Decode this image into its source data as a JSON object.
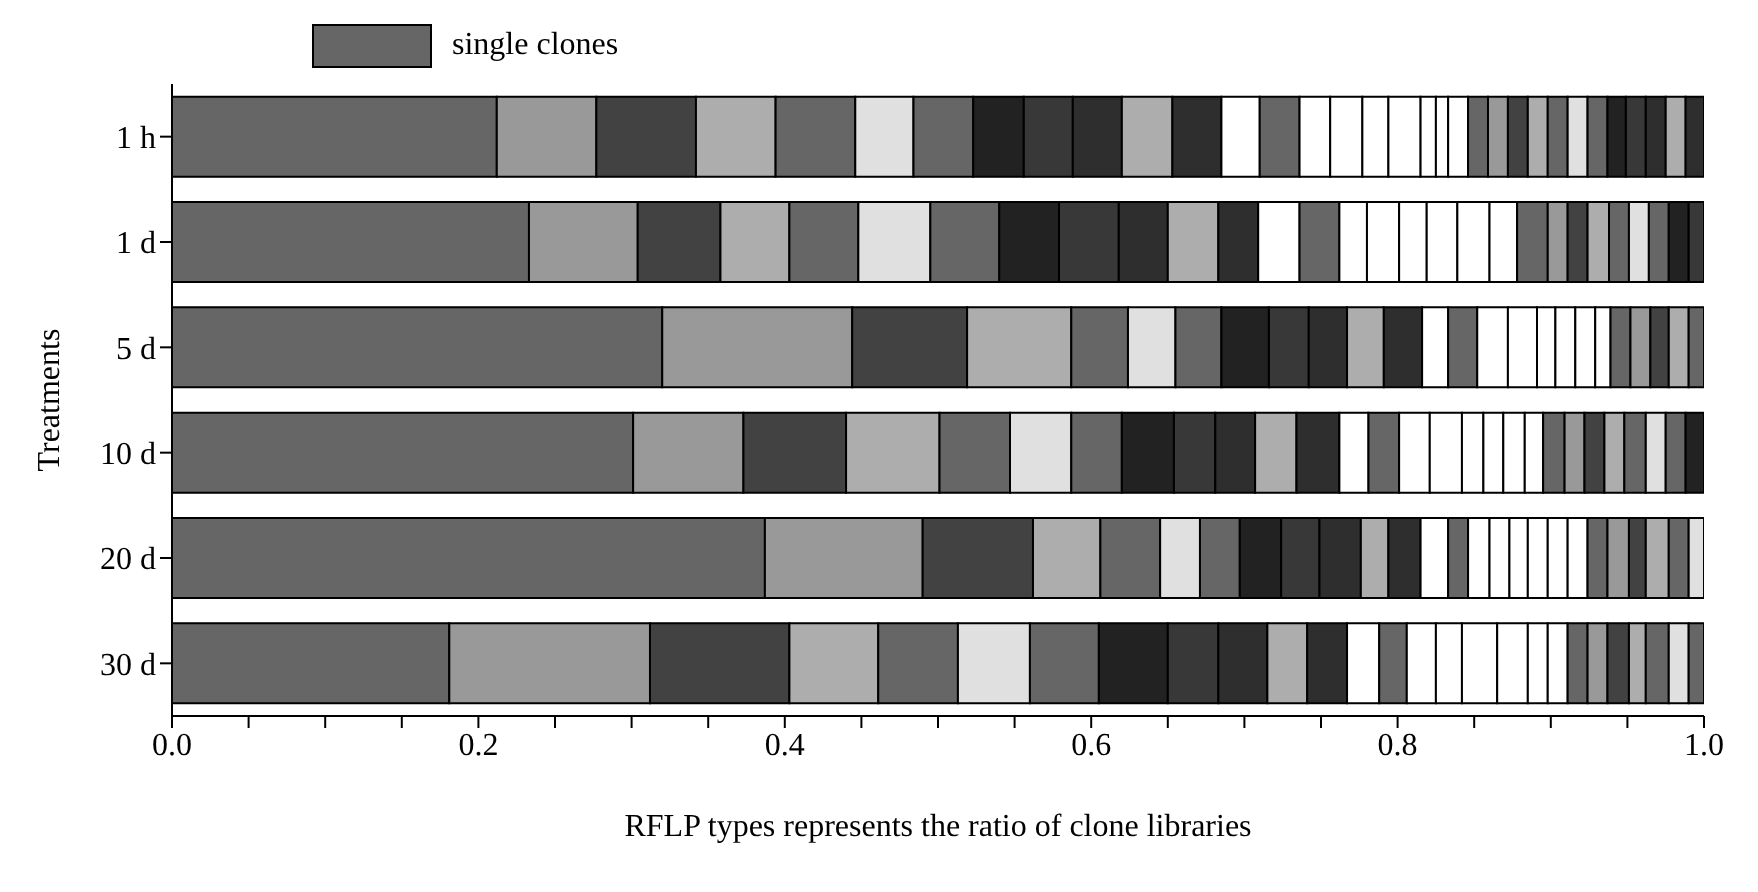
{
  "chart_data": {
    "type": "bar",
    "orientation": "horizontal",
    "stacked": true,
    "xlabel": "RFLP types represents the ratio of clone libraries",
    "ylabel": "Treatments",
    "categories": [
      "1 h",
      "1 d",
      "5 d",
      "10 d",
      "20 d",
      "30 d"
    ],
    "xlim": [
      0,
      1
    ],
    "xticks": [
      {
        "value": 0,
        "label": "0.0"
      },
      {
        "value": 0.05,
        "label": null
      },
      {
        "value": 0.1,
        "label": null
      },
      {
        "value": 0.15,
        "label": null
      },
      {
        "value": 0.2,
        "label": "0.2"
      },
      {
        "value": 0.25,
        "label": null
      },
      {
        "value": 0.3,
        "label": null
      },
      {
        "value": 0.35,
        "label": null
      },
      {
        "value": 0.4,
        "label": "0.4"
      },
      {
        "value": 0.45,
        "label": null
      },
      {
        "value": 0.5,
        "label": null
      },
      {
        "value": 0.55,
        "label": null
      },
      {
        "value": 0.6,
        "label": "0.6"
      },
      {
        "value": 0.65,
        "label": null
      },
      {
        "value": 0.7,
        "label": null
      },
      {
        "value": 0.75,
        "label": null
      },
      {
        "value": 0.8,
        "label": "0.8"
      },
      {
        "value": 0.85,
        "label": null
      },
      {
        "value": 0.9,
        "label": null
      },
      {
        "value": 0.95,
        "label": null
      },
      {
        "value": 1,
        "label": "1.0"
      }
    ],
    "legend": "top left",
    "series": [
      {
        "name": "single clones",
        "color": "#666666",
        "values": [
          0.212,
          0.233,
          0.32,
          0.301,
          0.387,
          0.181
        ]
      },
      {
        "color": "#999999",
        "values": [
          0.065,
          0.071,
          0.124,
          0.072,
          0.103,
          0.131
        ]
      },
      {
        "color": "#424242",
        "values": [
          0.065,
          0.054,
          0.075,
          0.067,
          0.072,
          0.091
        ]
      },
      {
        "color": "#adadad",
        "values": [
          0.052,
          0.045,
          0.068,
          0.061,
          0.044,
          0.058
        ]
      },
      {
        "color": "#666666",
        "values": [
          0.052,
          0.045,
          0.037,
          0.046,
          0.039,
          0.052
        ]
      },
      {
        "color": "#e0e0e0",
        "values": [
          0.038,
          0.047,
          0.031,
          0.04,
          0.026,
          0.047
        ]
      },
      {
        "color": "#666666",
        "values": [
          0.039,
          0.045,
          0.03,
          0.033,
          0.026,
          0.045
        ]
      },
      {
        "color": "#222222",
        "values": [
          0.033,
          0.039,
          0.031,
          0.034,
          0.027,
          0.045
        ]
      },
      {
        "color": "#383838",
        "values": [
          0.032,
          0.039,
          0.026,
          0.027,
          0.025,
          0.033
        ]
      },
      {
        "color": "#2e2e2e",
        "values": [
          0.032,
          0.032,
          0.025,
          0.026,
          0.027,
          0.032
        ]
      },
      {
        "color": "#adadad",
        "values": [
          0.033,
          0.033,
          0.024,
          0.027,
          0.018,
          0.026
        ]
      },
      {
        "color": "#2e2e2e",
        "values": [
          0.032,
          0.026,
          0.025,
          0.028,
          0.021,
          0.026
        ]
      },
      {
        "color": "#ffffff",
        "values": [
          0.025,
          0.027,
          0.017,
          0.019,
          0.018,
          0.021
        ]
      },
      {
        "color": "#666666",
        "values": [
          0.026,
          0.026,
          0.019,
          0.02,
          0.013,
          0.018
        ]
      },
      {
        "color": "#ffffff",
        "values": [
          0.02,
          0.018,
          0.02,
          0.02,
          0.014,
          0.019
        ]
      },
      {
        "color": "#ffffff",
        "values": [
          0.021,
          0.021,
          0.019,
          0.021,
          0.013,
          0.017
        ]
      },
      {
        "color": "#ffffff",
        "values": [
          0.017,
          0.018,
          0.012,
          0.014,
          0.012,
          0.023
        ]
      },
      {
        "color": "#ffffff",
        "values": [
          0.021,
          0.02,
          0.013,
          0.013,
          0.013,
          0.02
        ]
      },
      {
        "color": "#ffffff",
        "values": [
          0.01,
          0.021,
          0.013,
          0.014,
          0.013,
          0.013
        ]
      },
      {
        "color": "#ffffff",
        "values": [
          0.008,
          0.018,
          0.01,
          0.012,
          0.013,
          0.013
        ]
      },
      {
        "colors": [
          "#ffffff",
          "#666666",
          "#666666",
          "#666666",
          "#666666",
          "#666666"
        ],
        "values": [
          0.013,
          0.02,
          0.013,
          0.014,
          0.013,
          0.013
        ]
      },
      {
        "colors": [
          "#666666",
          "#999999",
          "#999999",
          "#999999",
          "#999999",
          "#999999"
        ],
        "values": [
          0.013,
          0.013,
          0.013,
          0.013,
          0.014,
          0.013
        ]
      },
      {
        "colors": [
          "#999999",
          "#424242",
          "#424242",
          "#424242",
          "#424242",
          "#424242"
        ],
        "values": [
          0.013,
          0.013,
          0.012,
          0.013,
          0.011,
          0.014
        ]
      },
      {
        "colors": [
          "#424242",
          "#adadad",
          "#adadad",
          "#adadad",
          "#adadad",
          "#adadad"
        ],
        "values": [
          0.013,
          0.014,
          0.013,
          0.013,
          0.015,
          0.011
        ]
      },
      {
        "colors": [
          "#adadad",
          "#666666",
          "#666666",
          "#666666",
          "#666666",
          "#666666"
        ],
        "values": [
          0.013,
          0.013,
          0.01,
          0.014,
          0.013,
          0.015
        ]
      },
      {
        "colors": [
          "#666666",
          "#e0e0e0",
          null,
          "#e0e0e0",
          "#e0e0e0",
          "#e0e0e0"
        ],
        "values": [
          0.013,
          0.013,
          null,
          0.013,
          0.01,
          0.013
        ]
      },
      {
        "colors": [
          "#e0e0e0",
          "#666666",
          null,
          "#666666",
          null,
          "#666666"
        ],
        "values": [
          0.013,
          0.013,
          null,
          0.013,
          null,
          0.01
        ]
      },
      {
        "colors": [
          "#666666",
          "#222222",
          null,
          "#222222",
          null,
          null
        ],
        "values": [
          0.013,
          0.013,
          null,
          0.012,
          null,
          null
        ]
      },
      {
        "colors": [
          "#222222",
          "#383838",
          null,
          null,
          null,
          null
        ],
        "values": [
          0.012,
          0.01,
          null,
          null,
          null,
          null
        ]
      },
      {
        "colors": [
          "#383838",
          null,
          null,
          null,
          null,
          null
        ],
        "values": [
          0.013,
          null,
          null,
          null,
          null,
          null
        ]
      },
      {
        "colors": [
          "#2e2e2e",
          null,
          null,
          null,
          null,
          null
        ],
        "values": [
          0.013,
          null,
          null,
          null,
          null,
          null
        ]
      },
      {
        "colors": [
          "#adadad",
          null,
          null,
          null,
          null,
          null
        ],
        "values": [
          0.013,
          null,
          null,
          null,
          null,
          null
        ]
      },
      {
        "colors": [
          "#2e2e2e",
          null,
          null,
          null,
          null,
          null
        ],
        "values": [
          0.012,
          null,
          null,
          null,
          null,
          null
        ]
      }
    ]
  }
}
